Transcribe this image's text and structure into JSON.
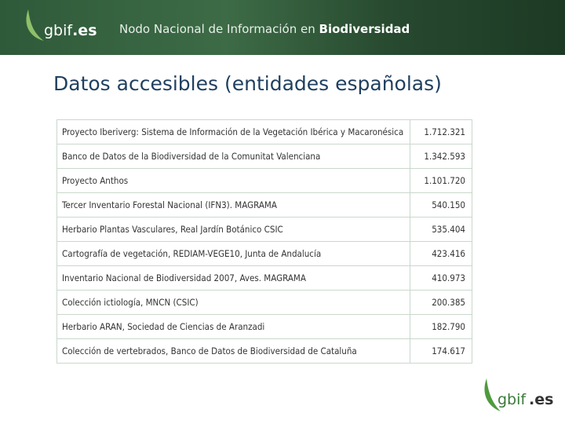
{
  "header": {
    "logo_name": "gbif",
    "logo_suffix": ".es",
    "title": "Nodo Nacional de Información en",
    "title_bold": "Biodiversidad"
  },
  "title": "Datos accesibles (entidades españolas)",
  "table": {
    "rows": [
      [
        "Proyecto Iberiverg: Sistema de Información de la Vegetación Ibérica y Macaronésica",
        "1.712.321"
      ],
      [
        "Banco de Datos de la Biodiversidad de la Comunitat Valenciana",
        "1.342.593"
      ],
      [
        "Proyecto Anthos",
        "1.101.720"
      ],
      [
        "Tercer Inventario Forestal Nacional (IFN3). MAGRAMA",
        "540.150"
      ],
      [
        "Herbario Plantas Vasculares, Real Jardín Botánico CSIC",
        "535.404"
      ],
      [
        "Cartografía de vegetación, REDIAM-VEGE10, Junta de Andalucía",
        "423.416"
      ],
      [
        "Inventario Nacional de Biodiversidad 2007, Aves. MAGRAMA",
        "410.973"
      ],
      [
        "Colección ictiología, MNCN (CSIC)",
        "200.385"
      ],
      [
        "Herbario ARAN, Sociedad de Ciencias de Aranzadi",
        "182.790"
      ],
      [
        "Colección de vertebrados, Banco de Datos de Biodiversidad de Cataluña",
        "174.617"
      ]
    ]
  },
  "footer": {
    "logo_name": "gbif",
    "logo_suffix": ".es"
  }
}
